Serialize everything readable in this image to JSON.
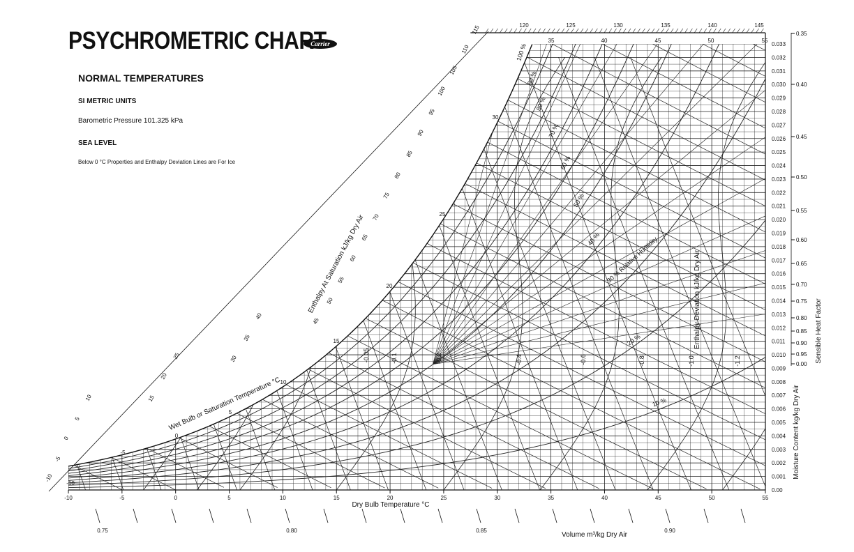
{
  "header": {
    "title": "PSYCHROMETRIC CHART",
    "logo_text": "Carrier",
    "subtitle": "NORMAL TEMPERATURES",
    "units": "SI METRIC UNITS",
    "pressure": "Barometric Pressure 101.325 kPa",
    "sea_level": "SEA LEVEL",
    "ice_note": "Below 0 °C Properties and Enthalpy Deviation Lines are For Ice"
  },
  "chart_data": {
    "type": "line",
    "title": "PSYCHROMETRIC CHART",
    "xlabel": "Dry Bulb Temperature °C",
    "ylabel": "Moisture Content  kg/kg Dry Air",
    "xlim": [
      -10,
      55
    ],
    "ylim": [
      0,
      0.033
    ],
    "x_ticks": [
      -10,
      -5,
      0,
      5,
      10,
      15,
      20,
      25,
      30,
      35,
      40,
      45,
      50,
      55
    ],
    "y_ticks": [
      0.0,
      0.001,
      0.002,
      0.003,
      0.004,
      0.005,
      0.006,
      0.007,
      0.008,
      0.009,
      0.01,
      0.011,
      0.012,
      0.013,
      0.014,
      0.015,
      0.016,
      0.017,
      0.018,
      0.019,
      0.02,
      0.021,
      0.022,
      0.023,
      0.024,
      0.025,
      0.026,
      0.027,
      0.028,
      0.029,
      0.03,
      0.031,
      0.032,
      0.033
    ],
    "y_tick_labels": [
      "0.00",
      "0.001",
      "0.002",
      "0.003",
      "0.004",
      "0.005",
      "0.006",
      "0.007",
      "0.008",
      "0.009",
      "0.010",
      "0.011",
      "0.012",
      "0.013",
      "0.014",
      "0.015",
      "0.016",
      "0.017",
      "0.018",
      "0.019",
      "0.020",
      "0.021",
      "0.022",
      "0.023",
      "0.024",
      "0.025",
      "0.026",
      "0.027",
      "0.028",
      "0.029",
      "0.030",
      "0.031",
      "0.032",
      "0.033"
    ],
    "grid": true,
    "relative_humidity": {
      "values": [
        10,
        20,
        30,
        40,
        50,
        60,
        70,
        80,
        90,
        100
      ],
      "labels": [
        "10 %",
        "20 %",
        "30 % Relative Humidity",
        "40 %",
        "50 %",
        "60 %",
        "70 %",
        "80 %",
        "90 %",
        "100 %"
      ]
    },
    "wet_bulb": {
      "label": "Wet Bulb or Saturation Temperature °C",
      "values": [
        -10,
        -5,
        0,
        5,
        10,
        15,
        20,
        25,
        30
      ],
      "labels": [
        "-10",
        "-5",
        "0",
        "5",
        "10",
        "15",
        "20",
        "25",
        "30"
      ]
    },
    "enthalpy": {
      "label": "Enthalpy At Saturation  kJ/kg Dry Air",
      "values": [
        -10,
        -5,
        0,
        5,
        10,
        15,
        20,
        25,
        30,
        35,
        40,
        45,
        50,
        55,
        60,
        65,
        70,
        75,
        80,
        85,
        90,
        95,
        100,
        105,
        110,
        115,
        120,
        125,
        130,
        135,
        140,
        145
      ],
      "labels": [
        "-10",
        "-5",
        "0",
        "5",
        "10",
        "15",
        "20",
        "25",
        "30",
        "35",
        "40",
        "45",
        "50",
        "55",
        "60",
        "65",
        "70",
        "75",
        "80",
        "85",
        "90",
        "95",
        "100",
        "105",
        "110",
        "115",
        "120",
        "125",
        "130",
        "135",
        "140",
        "145"
      ]
    },
    "top_scale_labels": [
      "35",
      "40",
      "45",
      "50",
      "55"
    ],
    "enthalpy_deviation": {
      "label": "Enthalpy Deviation  kJ/kg Dry Air",
      "labels": [
        "-0.05",
        "-0.1",
        "-0.2",
        "-0.4",
        "-0.6",
        "-0.8",
        "-1.0",
        "-1.2"
      ]
    },
    "volume": {
      "label": "Volume  m³/kg Dry Air",
      "values": [
        0.75,
        0.8,
        0.85,
        0.9
      ],
      "labels": [
        "0.75",
        "0.80",
        "0.85",
        "0.90"
      ]
    },
    "sensible_heat_factor": {
      "label": "Sensible Heat Factor",
      "labels": [
        "0.35",
        "0.40",
        "0.45",
        "0.50",
        "0.55",
        "0.60",
        "0.65",
        "0.70",
        "0.75",
        "0.80",
        "0.85",
        "0.90",
        "0.95",
        "0.00"
      ]
    }
  }
}
